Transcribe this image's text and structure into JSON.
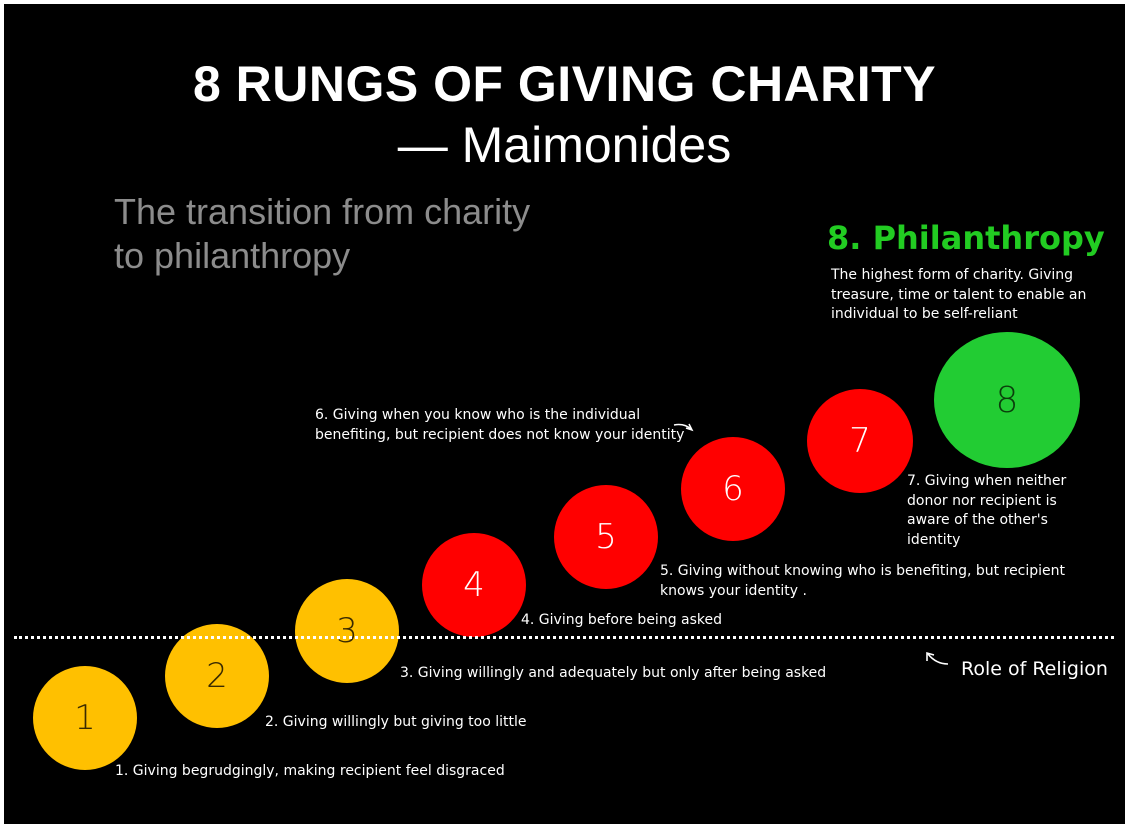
{
  "title": "8 RUNGS OF GIVING CHARITY",
  "subtitle": "— Maimonides",
  "transition_text": "The transition from charity to philanthropy",
  "philanthropy": {
    "title": "8. Philanthropy",
    "description": "The highest form of charity.  Giving treasure, time or talent to enable an individual to be self-reliant"
  },
  "rungs": [
    {
      "number": "1",
      "label": "1. Giving begrudgingly, making recipient feel disgraced",
      "color": "#ffc000"
    },
    {
      "number": "2",
      "label": "2. Giving willingly but giving too little",
      "color": "#ffc000"
    },
    {
      "number": "3",
      "label": "3. Giving willingly and adequately but only after being asked",
      "color": "#ffc000"
    },
    {
      "number": "4",
      "label": "4. Giving before being asked",
      "color": "#ff0000"
    },
    {
      "number": "5",
      "label": "5. Giving without knowing who is benefiting, but recipient knows your identity .",
      "color": "#ff0000"
    },
    {
      "number": "6",
      "label": "6.  Giving when you know who is the individual benefiting, but recipient does not know your identity",
      "color": "#ff0000"
    },
    {
      "number": "7",
      "label": "7. Giving when neither donor nor recipient is aware of the other's identity",
      "color": "#ff0000"
    },
    {
      "number": "8",
      "label": "",
      "color": "#22cc33"
    }
  ],
  "role_of_religion": "Role of Religion"
}
